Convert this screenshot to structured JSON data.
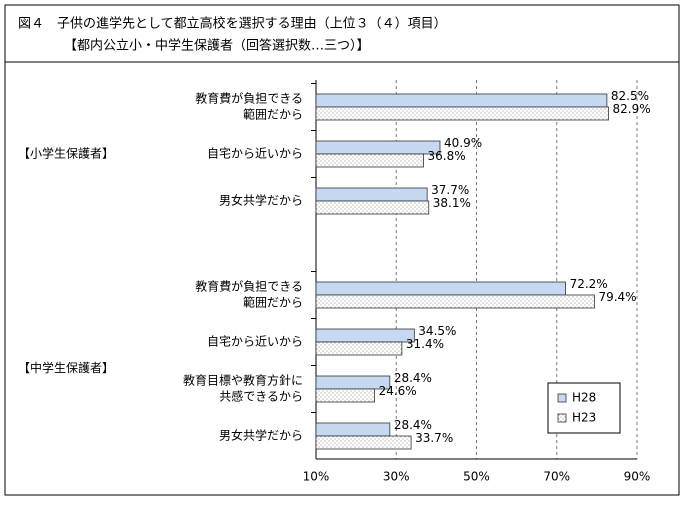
{
  "chart_data": {
    "type": "bar",
    "orientation": "horizontal",
    "title": [
      "図４　子供の進学先として都立高校を選択する理由（上位３（４）項目）",
      "【都内公立小・中学生保護者（回答選択数…三つ）】"
    ],
    "groups": [
      {
        "label": "【小学生保護者】",
        "size": 3
      },
      {
        "label": "【中学生保護者】",
        "size": 4
      }
    ],
    "categories": [
      [
        "教育費が負担できる",
        "範囲だから"
      ],
      [
        "自宅から近いから"
      ],
      [
        "男女共学だから"
      ],
      [
        "教育費が負担できる",
        "範囲だから"
      ],
      [
        "自宅から近いから"
      ],
      [
        "教育目標や教育方針に",
        "共感できるから"
      ],
      [
        "男女共学だから"
      ]
    ],
    "series": [
      {
        "name": "H28",
        "color": "#c6d9f1",
        "pattern": "solid",
        "values": [
          82.5,
          40.9,
          37.7,
          72.2,
          34.5,
          28.4,
          28.4
        ],
        "value_labels": [
          "82.5%",
          "40.9%",
          "37.7%",
          "72.2%",
          "34.5%",
          "28.4%",
          "28.4%"
        ]
      },
      {
        "name": "H23",
        "color": "#ffffff",
        "pattern": "dots",
        "values": [
          82.9,
          36.8,
          38.1,
          79.4,
          31.4,
          24.6,
          33.7
        ],
        "value_labels": [
          "82.9%",
          "36.8%",
          "38.1%",
          "79.4%",
          "31.4%",
          "24.6%",
          "33.7%"
        ]
      }
    ],
    "xlim": [
      10,
      90
    ],
    "xticks": [
      {
        "value": 10,
        "label": "10%"
      },
      {
        "value": 30,
        "label": "30%"
      },
      {
        "value": 50,
        "label": "50%"
      },
      {
        "value": 70,
        "label": "70%"
      },
      {
        "value": 90,
        "label": "90%"
      }
    ],
    "grid": true,
    "legend": "lower-right"
  }
}
